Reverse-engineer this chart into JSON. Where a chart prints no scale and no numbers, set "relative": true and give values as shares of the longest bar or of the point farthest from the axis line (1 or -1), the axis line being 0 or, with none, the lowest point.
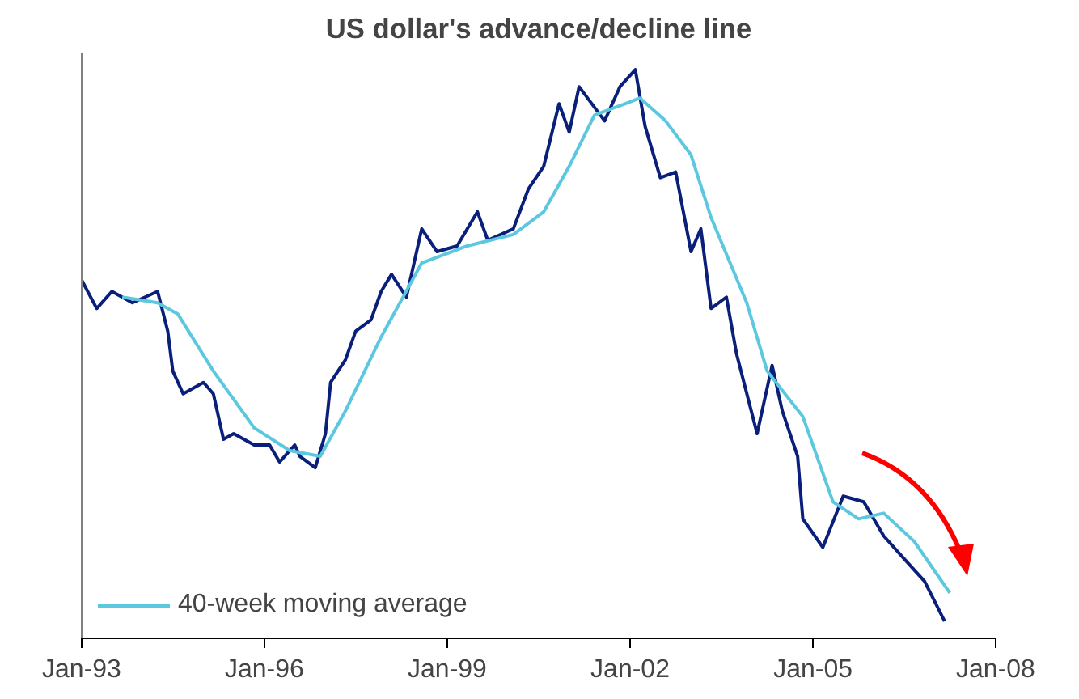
{
  "chart_data": {
    "type": "line",
    "title": "US dollar's advance/decline line",
    "relative": true,
    "xlim": [
      "1993-01",
      "2008-01"
    ],
    "xticks": [
      {
        "value": "1993-01",
        "label": "Jan-93"
      },
      {
        "value": "1996-01",
        "label": "Jan-96"
      },
      {
        "value": "1999-01",
        "label": "Jan-99"
      },
      {
        "value": "2002-01",
        "label": "Jan-02"
      },
      {
        "value": "2005-01",
        "label": "Jan-05"
      },
      {
        "value": "2008-01",
        "label": "Jan-08"
      }
    ],
    "legend": "bottom left",
    "grid": false,
    "marker": "none",
    "line_style": "solid",
    "series": [
      {
        "color": "#0a1f7a",
        "x": [
          "1993-01",
          "1993-04",
          "1993-07",
          "1993-11",
          "1994-04",
          "1994-06",
          "1994-07",
          "1994-09",
          "1995-01",
          "1995-03",
          "1995-05",
          "1995-07",
          "1995-11",
          "1996-02",
          "1996-04",
          "1996-07",
          "1996-08",
          "1996-11",
          "1997-01",
          "1997-02",
          "1997-05",
          "1997-07",
          "1997-10",
          "1997-12",
          "1998-02",
          "1998-05",
          "1998-08",
          "1998-11",
          "1999-03",
          "1999-07",
          "1999-09",
          "2000-02",
          "2000-05",
          "2000-08",
          "2000-11",
          "2001-01",
          "2001-03",
          "2001-08",
          "2001-11",
          "2002-02",
          "2002-04",
          "2002-07",
          "2002-10",
          "2003-01",
          "2003-03",
          "2003-05",
          "2003-08",
          "2003-10",
          "2004-02",
          "2004-05",
          "2004-07",
          "2004-10",
          "2004-11",
          "2005-03",
          "2005-07",
          "2005-11",
          "2006-03",
          "2006-07",
          "2006-11",
          "2007-03"
        ],
        "values": [
          0.63,
          0.58,
          0.61,
          0.59,
          0.61,
          0.54,
          0.47,
          0.43,
          0.45,
          0.43,
          0.35,
          0.36,
          0.34,
          0.34,
          0.31,
          0.34,
          0.32,
          0.3,
          0.36,
          0.45,
          0.49,
          0.54,
          0.56,
          0.61,
          0.64,
          0.6,
          0.72,
          0.68,
          0.69,
          0.75,
          0.7,
          0.72,
          0.79,
          0.83,
          0.94,
          0.89,
          0.97,
          0.91,
          0.97,
          1.0,
          0.9,
          0.81,
          0.82,
          0.68,
          0.72,
          0.58,
          0.6,
          0.5,
          0.36,
          0.48,
          0.4,
          0.32,
          0.21,
          0.16,
          0.25,
          0.24,
          0.18,
          0.14,
          0.1,
          0.03
        ]
      },
      {
        "name": "40-week moving average",
        "color": "#5bc8e0",
        "x": [
          "1993-09",
          "1994-04",
          "1994-08",
          "1995-03",
          "1995-11",
          "1996-06",
          "1996-12",
          "1997-05",
          "1997-12",
          "1998-08",
          "1999-05",
          "2000-02",
          "2000-08",
          "2001-01",
          "2001-06",
          "2001-12",
          "2002-03",
          "2002-08",
          "2003-01",
          "2003-05",
          "2003-12",
          "2004-04",
          "2004-11",
          "2005-05",
          "2005-10",
          "2006-03",
          "2006-09",
          "2007-04"
        ],
        "values": [
          0.6,
          0.59,
          0.57,
          0.47,
          0.37,
          0.33,
          0.32,
          0.4,
          0.53,
          0.66,
          0.69,
          0.71,
          0.75,
          0.83,
          0.92,
          0.94,
          0.95,
          0.91,
          0.85,
          0.74,
          0.59,
          0.47,
          0.39,
          0.24,
          0.21,
          0.22,
          0.17,
          0.08
        ]
      }
    ]
  }
}
